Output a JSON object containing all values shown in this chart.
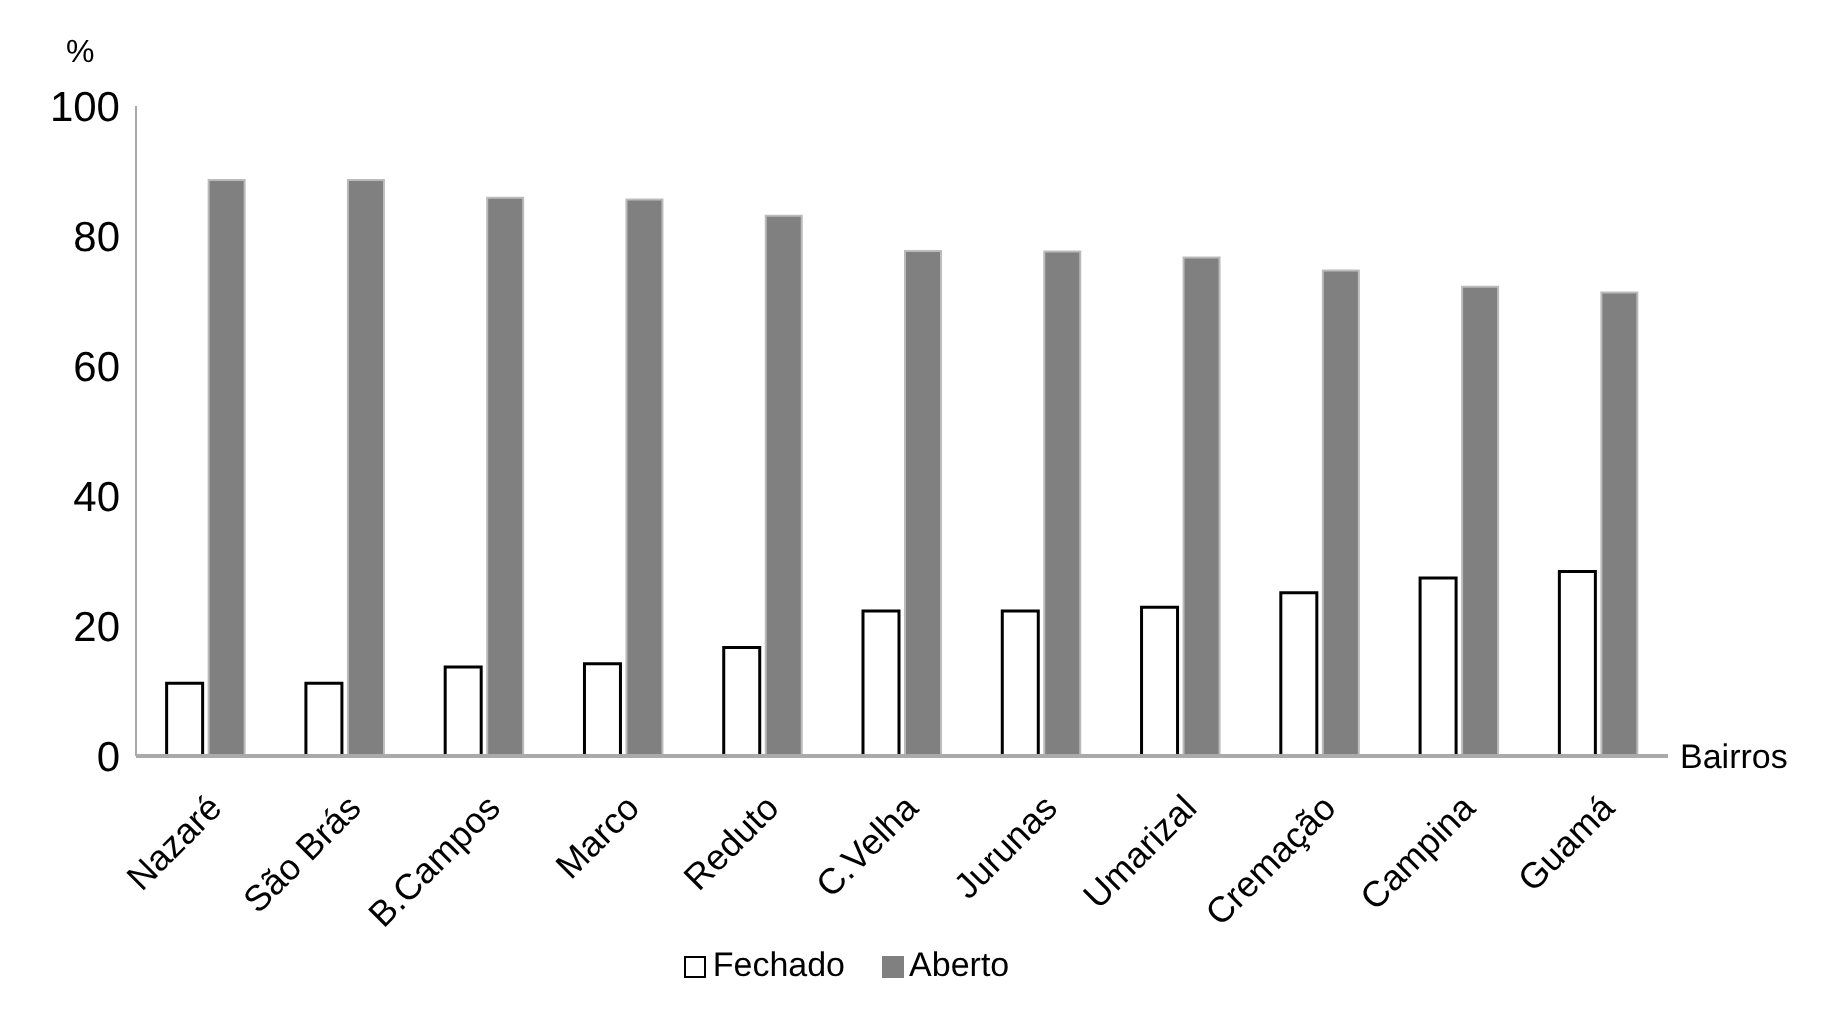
{
  "chart_data": {
    "type": "bar",
    "ylabel": "%",
    "xlabel": "Bairros",
    "categories": [
      "Nazaré",
      "São Brás",
      "B.Campos",
      "Marco",
      "Reduto",
      "C.Velha",
      "Jurunas",
      "Umarizal",
      "Cremação",
      "Campina",
      "Guamá"
    ],
    "series": [
      {
        "name": "Fechado",
        "color": "#ffffff",
        "values": [
          11.2,
          11.2,
          13.7,
          14.2,
          16.7,
          22.3,
          22.3,
          22.9,
          25.1,
          27.4,
          28.4
        ]
      },
      {
        "name": "Aberto",
        "color": "#808080",
        "values": [
          88.6,
          88.6,
          85.9,
          85.6,
          83.1,
          77.7,
          77.6,
          76.7,
          74.7,
          72.2,
          71.3
        ]
      }
    ],
    "ylim": [
      0,
      100
    ],
    "yticks": [
      0,
      20,
      40,
      60,
      80,
      100
    ],
    "grid": false,
    "legend": "bottom"
  }
}
